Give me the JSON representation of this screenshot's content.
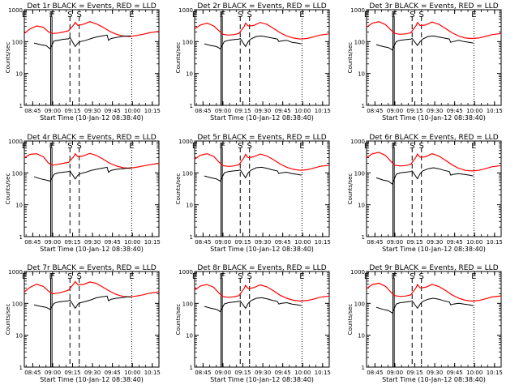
{
  "chart_data": {
    "type": "line",
    "layout": "3x3 grid",
    "shared": {
      "ylabel": "Counts/sec",
      "xlabel": "Start Time (10-Jan-12 08:38:40)",
      "x_unit": "minutes after 08:38:40 (time of day)",
      "xlim_time": [
        "08:38:40",
        "10:20:00"
      ],
      "xtick_labels": [
        "08:45",
        "09:00",
        "09:15",
        "09:30",
        "09:45",
        "10:00",
        "10:15"
      ],
      "yscale": "log",
      "ylim": [
        1,
        1000
      ],
      "ytick_labels": [
        "1",
        "10",
        "100",
        "1000"
      ],
      "series_colors": {
        "events": "#000000",
        "lld": "#ff0000"
      },
      "markers": [
        {
          "label": "E",
          "time": "08:38:40",
          "style": "dotted"
        },
        {
          "label": "F",
          "time": "08:58:30",
          "style": "solid"
        },
        {
          "label": "F",
          "time": "08:59:30",
          "style": "solid"
        },
        {
          "label": "S",
          "time": "09:13:00",
          "style": "dashed"
        },
        {
          "label": "S",
          "time": "09:20:00",
          "style": "dashed"
        },
        {
          "label": "E",
          "time": "09:59:30",
          "style": "dotted"
        }
      ],
      "events_x": [
        "08:46",
        "08:51",
        "08:55",
        "08:58",
        "09:01",
        "09:04",
        "09:08",
        "09:12",
        "09:13",
        "09:17",
        "09:19",
        "09:21",
        "09:25",
        "09:29",
        "09:33",
        "09:37",
        "09:41",
        "09:42",
        "09:44",
        "09:48",
        "09:52",
        "09:56",
        "09:59"
      ],
      "lld_x": [
        "08:38:40",
        "08:43",
        "08:48",
        "08:53",
        "08:57",
        "09:00",
        "09:04",
        "09:08",
        "09:12",
        "09:16",
        "09:17",
        "09:19",
        "09:23",
        "09:28",
        "09:33",
        "09:38",
        "09:43",
        "09:48",
        "09:53",
        "09:58",
        "10:03",
        "10:08",
        "10:13",
        "10:20"
      ]
    },
    "panels": [
      {
        "title": "Det 1r BLACK = Events, RED = LLD",
        "events": [
          90,
          80,
          75,
          60,
          105,
          110,
          118,
          122,
          135,
          70,
          90,
          100,
          110,
          125,
          140,
          150,
          160,
          110,
          125,
          135,
          145,
          150,
          150
        ],
        "lld": [
          180,
          250,
          310,
          280,
          200,
          180,
          185,
          200,
          220,
          340,
          400,
          320,
          350,
          420,
          360,
          280,
          210,
          170,
          150,
          145,
          155,
          170,
          190,
          210
        ]
      },
      {
        "title": "Det 2r BLACK = Events, RED = LLD",
        "events": [
          85,
          75,
          70,
          60,
          100,
          110,
          115,
          120,
          125,
          70,
          100,
          120,
          145,
          150,
          140,
          130,
          120,
          100,
          105,
          110,
          95,
          90,
          85
        ],
        "lld": [
          250,
          330,
          380,
          310,
          220,
          170,
          160,
          165,
          180,
          300,
          380,
          310,
          320,
          400,
          350,
          260,
          190,
          150,
          130,
          120,
          125,
          140,
          160,
          175
        ]
      },
      {
        "title": "Det 3r BLACK = Events, RED = LLD",
        "events": [
          80,
          70,
          65,
          55,
          100,
          110,
          115,
          120,
          125,
          75,
          100,
          120,
          145,
          150,
          140,
          130,
          120,
          95,
          100,
          110,
          100,
          95,
          90
        ],
        "lld": [
          280,
          380,
          420,
          340,
          230,
          180,
          170,
          175,
          190,
          320,
          400,
          320,
          330,
          410,
          350,
          260,
          190,
          150,
          130,
          125,
          130,
          145,
          165,
          180
        ]
      },
      {
        "title": "Det 4r BLACK = Events, RED = LLD",
        "events": [
          75,
          65,
          60,
          55,
          90,
          100,
          105,
          110,
          115,
          65,
          85,
          95,
          105,
          120,
          130,
          140,
          150,
          105,
          120,
          130,
          135,
          140,
          145
        ],
        "lld": [
          300,
          380,
          400,
          320,
          200,
          175,
          185,
          200,
          215,
          330,
          400,
          320,
          340,
          410,
          350,
          270,
          200,
          165,
          145,
          140,
          150,
          165,
          180,
          200
        ]
      },
      {
        "title": "Det 5r BLACK = Events, RED = LLD",
        "events": [
          80,
          70,
          65,
          55,
          100,
          110,
          115,
          120,
          125,
          70,
          100,
          120,
          145,
          150,
          140,
          125,
          115,
          95,
          100,
          105,
          95,
          90,
          85
        ],
        "lld": [
          270,
          360,
          400,
          330,
          220,
          170,
          160,
          165,
          180,
          310,
          380,
          300,
          320,
          390,
          340,
          260,
          190,
          150,
          130,
          120,
          125,
          140,
          160,
          175
        ]
      },
      {
        "title": "Det 6r BLACK = Events, RED = LLD",
        "events": [
          70,
          60,
          55,
          45,
          90,
          100,
          105,
          110,
          115,
          65,
          95,
          115,
          135,
          145,
          135,
          120,
          110,
          85,
          90,
          95,
          90,
          85,
          80
        ],
        "lld": [
          300,
          400,
          440,
          350,
          230,
          175,
          165,
          170,
          185,
          320,
          390,
          310,
          320,
          400,
          340,
          250,
          180,
          140,
          120,
          115,
          120,
          135,
          155,
          170
        ]
      },
      {
        "title": "Det 7r BLACK = Events, RED = LLD",
        "events": [
          90,
          80,
          75,
          65,
          100,
          110,
          115,
          120,
          130,
          70,
          95,
          105,
          115,
          130,
          150,
          160,
          170,
          120,
          135,
          145,
          150,
          160,
          160
        ],
        "lld": [
          230,
          320,
          400,
          340,
          240,
          200,
          210,
          230,
          260,
          420,
          480,
          380,
          390,
          470,
          420,
          320,
          240,
          190,
          165,
          160,
          170,
          185,
          210,
          230
        ]
      },
      {
        "title": "Det 8r BLACK = Events, RED = LLD",
        "events": [
          80,
          70,
          65,
          55,
          95,
          105,
          110,
          115,
          120,
          70,
          100,
          120,
          145,
          150,
          140,
          125,
          115,
          95,
          100,
          105,
          95,
          90,
          85
        ],
        "lld": [
          260,
          350,
          390,
          320,
          210,
          165,
          155,
          160,
          175,
          300,
          370,
          290,
          310,
          380,
          330,
          250,
          180,
          145,
          125,
          118,
          122,
          135,
          155,
          170
        ]
      },
      {
        "title": "Det 9r BLACK = Events, RED = LLD",
        "events": [
          75,
          65,
          60,
          50,
          95,
          105,
          110,
          115,
          120,
          70,
          95,
          115,
          135,
          145,
          135,
          120,
          110,
          90,
          95,
          100,
          95,
          90,
          85
        ],
        "lld": [
          290,
          390,
          430,
          340,
          225,
          175,
          165,
          170,
          185,
          315,
          390,
          305,
          320,
          395,
          340,
          255,
          185,
          145,
          125,
          118,
          122,
          138,
          158,
          172
        ]
      }
    ]
  }
}
